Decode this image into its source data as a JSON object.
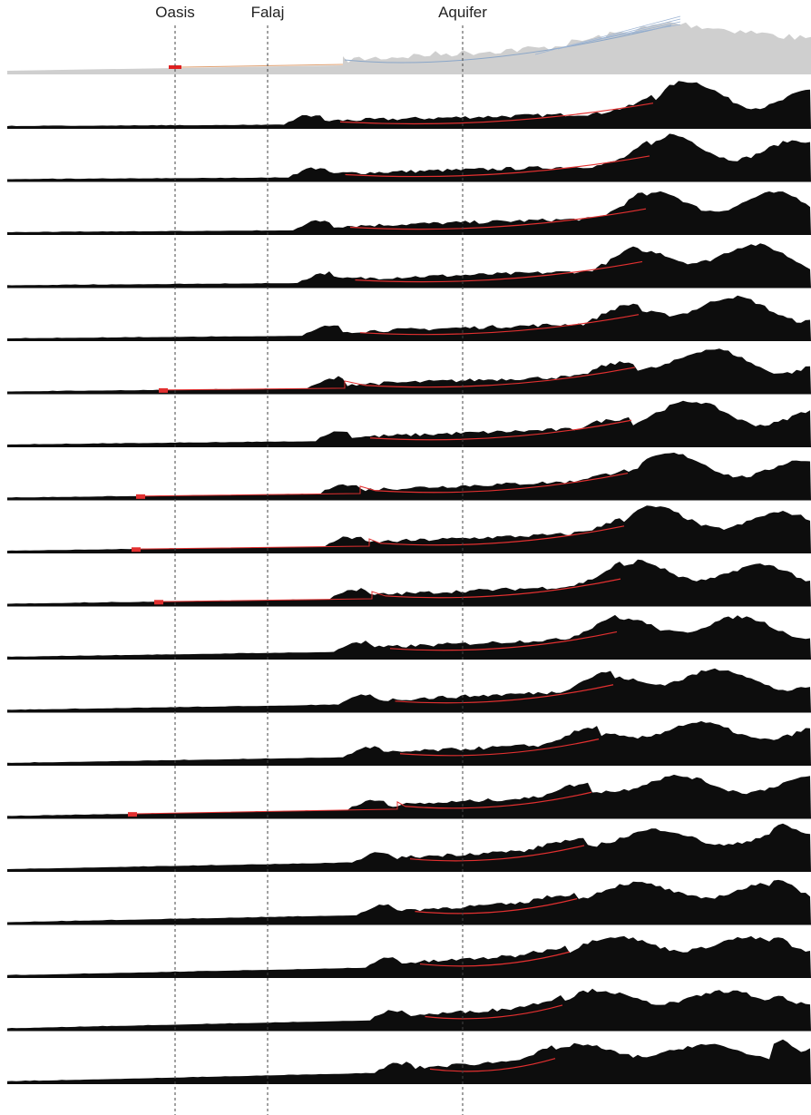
{
  "labels": [
    "Oasis",
    "Falaj",
    "Aquifer"
  ]
}
